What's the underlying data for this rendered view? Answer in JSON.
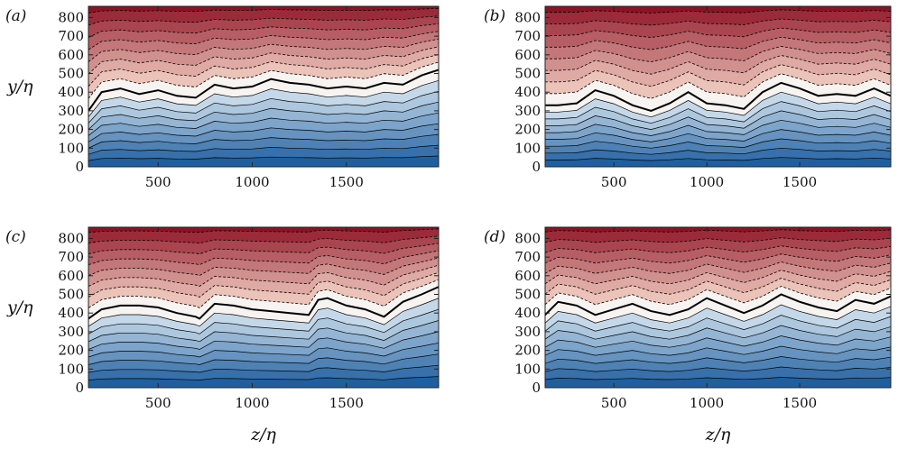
{
  "colors": {
    "cold_deep": "#1f5fa0",
    "cold_light": "#dbe9f3",
    "neutral": "#f6f3f1",
    "warm_light": "#f8dccd",
    "warm_deep": "#8e1224",
    "contour_line": "#000000"
  },
  "chart_data": [
    {
      "type": "heatmap",
      "panel": "(a)",
      "ylabel": "y/η",
      "xlabel": "",
      "xlim": [
        130,
        1990
      ],
      "ylim": [
        0,
        860
      ],
      "xticks": [
        500,
        1000,
        1500
      ],
      "yticks": [
        0,
        100,
        200,
        300,
        400,
        500,
        600,
        700,
        800
      ],
      "bold_contour": [
        [
          130,
          300
        ],
        [
          200,
          400
        ],
        [
          300,
          420
        ],
        [
          400,
          390
        ],
        [
          500,
          410
        ],
        [
          600,
          380
        ],
        [
          700,
          370
        ],
        [
          800,
          440
        ],
        [
          900,
          420
        ],
        [
          1000,
          430
        ],
        [
          1100,
          470
        ],
        [
          1200,
          450
        ],
        [
          1300,
          440
        ],
        [
          1400,
          420
        ],
        [
          1500,
          430
        ],
        [
          1600,
          420
        ],
        [
          1700,
          450
        ],
        [
          1800,
          440
        ],
        [
          1900,
          490
        ],
        [
          1990,
          520
        ]
      ]
    },
    {
      "type": "heatmap",
      "panel": "(b)",
      "ylabel": "",
      "xlabel": "",
      "xlim": [
        130,
        1990
      ],
      "ylim": [
        0,
        860
      ],
      "xticks": [
        500,
        1000,
        1500
      ],
      "yticks": [
        0,
        100,
        200,
        300,
        400,
        500,
        600,
        700,
        800
      ],
      "bold_contour": [
        [
          130,
          330
        ],
        [
          200,
          330
        ],
        [
          300,
          340
        ],
        [
          400,
          410
        ],
        [
          500,
          380
        ],
        [
          600,
          330
        ],
        [
          700,
          300
        ],
        [
          800,
          340
        ],
        [
          900,
          400
        ],
        [
          1000,
          340
        ],
        [
          1100,
          330
        ],
        [
          1200,
          310
        ],
        [
          1300,
          400
        ],
        [
          1400,
          450
        ],
        [
          1500,
          420
        ],
        [
          1600,
          380
        ],
        [
          1700,
          390
        ],
        [
          1800,
          380
        ],
        [
          1900,
          420
        ],
        [
          1990,
          380
        ]
      ]
    },
    {
      "type": "heatmap",
      "panel": "(c)",
      "ylabel": "y/η",
      "xlabel": "z/η",
      "xlim": [
        130,
        1990
      ],
      "ylim": [
        0,
        860
      ],
      "xticks": [
        500,
        1000,
        1500
      ],
      "yticks": [
        0,
        100,
        200,
        300,
        400,
        500,
        600,
        700,
        800
      ],
      "bold_contour": [
        [
          130,
          370
        ],
        [
          200,
          420
        ],
        [
          300,
          440
        ],
        [
          400,
          440
        ],
        [
          500,
          430
        ],
        [
          600,
          400
        ],
        [
          700,
          380
        ],
        [
          720,
          370
        ],
        [
          800,
          450
        ],
        [
          900,
          440
        ],
        [
          1000,
          420
        ],
        [
          1100,
          410
        ],
        [
          1200,
          400
        ],
        [
          1300,
          390
        ],
        [
          1350,
          470
        ],
        [
          1400,
          480
        ],
        [
          1500,
          440
        ],
        [
          1600,
          420
        ],
        [
          1700,
          380
        ],
        [
          1800,
          460
        ],
        [
          1900,
          500
        ],
        [
          1990,
          540
        ]
      ]
    },
    {
      "type": "heatmap",
      "panel": "(d)",
      "ylabel": "",
      "xlabel": "z/η",
      "xlim": [
        130,
        1990
      ],
      "ylim": [
        0,
        860
      ],
      "xticks": [
        500,
        1000,
        1500
      ],
      "yticks": [
        0,
        100,
        200,
        300,
        400,
        500,
        600,
        700,
        800
      ],
      "bold_contour": [
        [
          130,
          390
        ],
        [
          200,
          460
        ],
        [
          300,
          440
        ],
        [
          400,
          390
        ],
        [
          500,
          420
        ],
        [
          600,
          450
        ],
        [
          700,
          410
        ],
        [
          800,
          390
        ],
        [
          900,
          420
        ],
        [
          1000,
          480
        ],
        [
          1100,
          440
        ],
        [
          1200,
          400
        ],
        [
          1300,
          440
        ],
        [
          1400,
          500
        ],
        [
          1500,
          460
        ],
        [
          1600,
          430
        ],
        [
          1700,
          410
        ],
        [
          1800,
          470
        ],
        [
          1900,
          450
        ],
        [
          1990,
          490
        ]
      ]
    }
  ]
}
